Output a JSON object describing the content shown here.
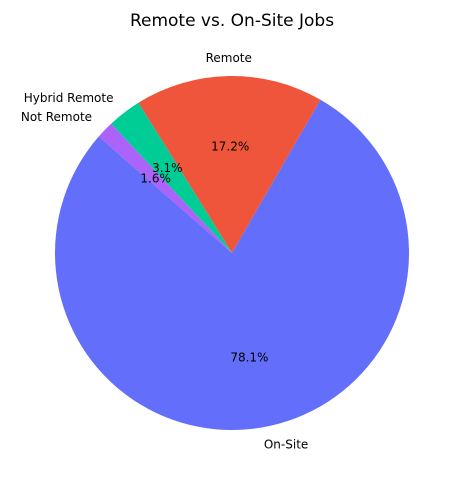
{
  "chart_data": {
    "type": "pie",
    "title": "Remote vs. On-Site Jobs",
    "slices": [
      {
        "label": "Remote",
        "value": 17.2,
        "pct_label": "17.2%",
        "color": "#EF553B"
      },
      {
        "label": "Hybrid Remote",
        "value": 3.1,
        "pct_label": "3.1%",
        "color": "#00CC96"
      },
      {
        "label": "Not Remote",
        "value": 1.6,
        "pct_label": "1.6%",
        "color": "#AB63FA"
      },
      {
        "label": "On-Site",
        "value": 78.1,
        "pct_label": "78.1%",
        "color": "#636EFA"
      }
    ],
    "start_angle_deg": 60,
    "direction": "counterclockwise"
  }
}
